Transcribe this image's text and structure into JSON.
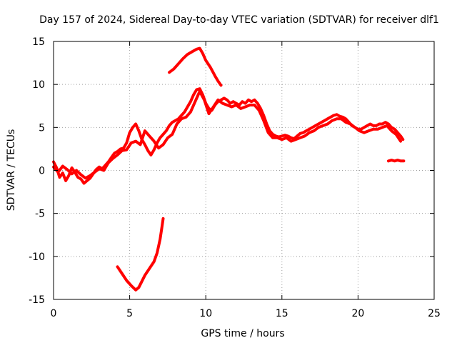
{
  "chart_data": {
    "type": "line",
    "title": "Day 157 of 2024, Sidereal Day-to-day VTEC variation (SDTVAR) for receiver dlf1",
    "xlabel": "GPS time / hours",
    "ylabel": "SDTVAR / TECUs",
    "xlim": [
      0,
      25
    ],
    "ylim": [
      -15,
      15
    ],
    "x_ticks": [
      0,
      5,
      10,
      15,
      20,
      25
    ],
    "y_ticks": [
      -15,
      -10,
      -5,
      0,
      5,
      10,
      15
    ],
    "x_tick_labels": [
      "0",
      "5",
      "10",
      "15",
      "20",
      "25"
    ],
    "y_tick_labels": [
      "-15",
      "-10",
      "-5",
      "0",
      "5",
      "10",
      "15"
    ],
    "grid": true,
    "line_color": "#ff0000",
    "grid_color": "#a0a0a0",
    "series": [
      {
        "name": "main-trace",
        "points": [
          [
            0.0,
            1.0
          ],
          [
            0.2,
            0.3
          ],
          [
            0.4,
            -0.8
          ],
          [
            0.6,
            -0.3
          ],
          [
            0.8,
            -1.2
          ],
          [
            1.0,
            -0.6
          ],
          [
            1.2,
            0.3
          ],
          [
            1.4,
            -0.2
          ],
          [
            1.6,
            -0.8
          ],
          [
            1.8,
            -1.0
          ],
          [
            2.0,
            -1.5
          ],
          [
            2.2,
            -1.2
          ],
          [
            2.4,
            -0.9
          ],
          [
            2.6,
            -0.4
          ],
          [
            2.8,
            0.1
          ],
          [
            3.0,
            0.4
          ],
          [
            3.2,
            0.2
          ],
          [
            3.4,
            0.6
          ],
          [
            3.6,
            1.0
          ],
          [
            3.8,
            1.5
          ],
          [
            4.0,
            2.0
          ],
          [
            4.2,
            2.2
          ],
          [
            4.4,
            2.5
          ],
          [
            4.6,
            2.6
          ],
          [
            4.8,
            3.2
          ],
          [
            5.0,
            4.4
          ],
          [
            5.2,
            5.0
          ],
          [
            5.4,
            5.4
          ],
          [
            5.6,
            4.6
          ],
          [
            5.8,
            3.6
          ],
          [
            6.0,
            3.0
          ],
          [
            6.2,
            2.3
          ],
          [
            6.4,
            1.8
          ],
          [
            6.6,
            2.4
          ],
          [
            6.8,
            3.2
          ],
          [
            7.0,
            3.8
          ],
          [
            7.2,
            4.2
          ],
          [
            7.4,
            4.6
          ],
          [
            7.6,
            5.2
          ],
          [
            7.8,
            5.6
          ],
          [
            8.0,
            5.8
          ],
          [
            8.2,
            6.0
          ],
          [
            8.4,
            6.4
          ],
          [
            8.6,
            6.8
          ],
          [
            8.8,
            7.4
          ],
          [
            9.0,
            8.0
          ],
          [
            9.2,
            8.8
          ],
          [
            9.4,
            9.4
          ],
          [
            9.6,
            9.5
          ],
          [
            9.8,
            8.8
          ],
          [
            10.0,
            7.8
          ],
          [
            10.2,
            7.2
          ],
          [
            10.4,
            7.0
          ],
          [
            10.6,
            7.6
          ],
          [
            10.8,
            8.0
          ],
          [
            11.0,
            8.2
          ],
          [
            11.2,
            8.4
          ],
          [
            11.4,
            8.2
          ],
          [
            11.6,
            7.8
          ],
          [
            11.8,
            8.0
          ],
          [
            12.0,
            7.8
          ],
          [
            12.2,
            7.6
          ],
          [
            12.4,
            8.0
          ],
          [
            12.6,
            7.8
          ],
          [
            12.8,
            8.2
          ],
          [
            13.0,
            8.0
          ],
          [
            13.2,
            8.2
          ],
          [
            13.4,
            7.8
          ],
          [
            13.6,
            7.2
          ],
          [
            13.8,
            6.4
          ],
          [
            14.0,
            5.4
          ],
          [
            14.2,
            4.6
          ],
          [
            14.4,
            4.2
          ],
          [
            14.6,
            4.0
          ],
          [
            14.8,
            3.9
          ],
          [
            15.0,
            4.0
          ],
          [
            15.2,
            4.1
          ],
          [
            15.4,
            4.0
          ],
          [
            15.6,
            3.8
          ],
          [
            15.8,
            3.7
          ],
          [
            16.0,
            4.0
          ],
          [
            16.2,
            4.3
          ],
          [
            16.4,
            4.4
          ],
          [
            16.6,
            4.6
          ],
          [
            16.8,
            4.8
          ],
          [
            17.0,
            5.0
          ],
          [
            17.2,
            5.2
          ],
          [
            17.4,
            5.4
          ],
          [
            17.6,
            5.6
          ],
          [
            17.8,
            5.8
          ],
          [
            18.0,
            6.0
          ],
          [
            18.2,
            6.2
          ],
          [
            18.4,
            6.4
          ],
          [
            18.6,
            6.5
          ],
          [
            18.8,
            6.3
          ],
          [
            19.0,
            6.2
          ],
          [
            19.2,
            6.0
          ],
          [
            19.4,
            5.6
          ],
          [
            19.6,
            5.2
          ],
          [
            19.8,
            5.0
          ],
          [
            20.0,
            4.8
          ],
          [
            20.2,
            4.8
          ],
          [
            20.4,
            5.0
          ],
          [
            20.6,
            5.2
          ],
          [
            20.8,
            5.4
          ],
          [
            21.0,
            5.2
          ],
          [
            21.2,
            5.2
          ],
          [
            21.4,
            5.4
          ],
          [
            21.6,
            5.4
          ],
          [
            21.8,
            5.6
          ],
          [
            22.0,
            5.4
          ],
          [
            22.2,
            5.0
          ],
          [
            22.4,
            4.8
          ],
          [
            22.6,
            4.4
          ],
          [
            22.8,
            4.0
          ],
          [
            22.95,
            3.6
          ]
        ]
      },
      {
        "name": "secondary-trace",
        "points": [
          [
            0.0,
            0.4
          ],
          [
            0.3,
            -0.2
          ],
          [
            0.6,
            0.5
          ],
          [
            0.9,
            0.1
          ],
          [
            1.2,
            -0.4
          ],
          [
            1.5,
            0.0
          ],
          [
            1.8,
            -0.5
          ],
          [
            2.1,
            -0.9
          ],
          [
            2.4,
            -0.6
          ],
          [
            2.7,
            -0.2
          ],
          [
            3.0,
            0.2
          ],
          [
            3.3,
            0.0
          ],
          [
            3.6,
            0.9
          ],
          [
            3.9,
            1.4
          ],
          [
            4.2,
            1.8
          ],
          [
            4.5,
            2.3
          ],
          [
            4.8,
            2.4
          ],
          [
            5.1,
            3.2
          ],
          [
            5.4,
            3.4
          ],
          [
            5.7,
            3.0
          ],
          [
            6.0,
            4.6
          ],
          [
            6.3,
            4.0
          ],
          [
            6.6,
            3.4
          ],
          [
            6.9,
            2.6
          ],
          [
            7.2,
            3.0
          ],
          [
            7.5,
            3.8
          ],
          [
            7.8,
            4.2
          ],
          [
            8.1,
            5.4
          ],
          [
            8.4,
            6.0
          ],
          [
            8.7,
            6.2
          ],
          [
            9.0,
            6.8
          ],
          [
            9.3,
            8.0
          ],
          [
            9.6,
            9.2
          ],
          [
            9.9,
            8.2
          ],
          [
            10.2,
            6.6
          ],
          [
            10.5,
            7.4
          ],
          [
            10.8,
            8.2
          ],
          [
            11.1,
            7.8
          ],
          [
            11.4,
            7.6
          ],
          [
            11.7,
            7.4
          ],
          [
            12.0,
            7.6
          ],
          [
            12.3,
            7.2
          ],
          [
            12.6,
            7.4
          ],
          [
            12.9,
            7.6
          ],
          [
            13.2,
            7.6
          ],
          [
            13.5,
            7.0
          ],
          [
            13.8,
            5.8
          ],
          [
            14.1,
            4.4
          ],
          [
            14.4,
            3.8
          ],
          [
            14.7,
            3.8
          ],
          [
            15.0,
            3.6
          ],
          [
            15.3,
            3.8
          ],
          [
            15.6,
            3.4
          ],
          [
            15.9,
            3.6
          ],
          [
            16.2,
            3.8
          ],
          [
            16.5,
            4.0
          ],
          [
            16.8,
            4.4
          ],
          [
            17.1,
            4.6
          ],
          [
            17.4,
            5.0
          ],
          [
            17.7,
            5.2
          ],
          [
            18.0,
            5.4
          ],
          [
            18.3,
            5.8
          ],
          [
            18.6,
            6.0
          ],
          [
            18.9,
            6.0
          ],
          [
            19.2,
            5.6
          ],
          [
            19.5,
            5.4
          ],
          [
            19.8,
            5.0
          ],
          [
            20.1,
            4.6
          ],
          [
            20.4,
            4.4
          ],
          [
            20.7,
            4.6
          ],
          [
            21.0,
            4.8
          ],
          [
            21.3,
            4.8
          ],
          [
            21.6,
            5.0
          ],
          [
            21.9,
            5.2
          ],
          [
            22.2,
            4.6
          ],
          [
            22.5,
            4.2
          ],
          [
            22.8,
            3.4
          ]
        ]
      },
      {
        "name": "upper-segment",
        "points": [
          [
            7.6,
            11.4
          ],
          [
            7.9,
            11.8
          ],
          [
            8.2,
            12.4
          ],
          [
            8.5,
            13.0
          ],
          [
            8.8,
            13.5
          ],
          [
            9.1,
            13.8
          ],
          [
            9.4,
            14.1
          ],
          [
            9.6,
            14.2
          ],
          [
            9.8,
            13.6
          ],
          [
            10.0,
            12.8
          ],
          [
            10.3,
            12.0
          ],
          [
            10.6,
            11.0
          ],
          [
            10.8,
            10.4
          ],
          [
            11.0,
            9.9
          ]
        ]
      },
      {
        "name": "lower-segment",
        "points": [
          [
            4.2,
            -11.2
          ],
          [
            4.5,
            -12.0
          ],
          [
            4.8,
            -12.8
          ],
          [
            5.1,
            -13.4
          ],
          [
            5.4,
            -13.9
          ],
          [
            5.6,
            -13.6
          ],
          [
            5.8,
            -12.9
          ],
          [
            6.0,
            -12.2
          ],
          [
            6.3,
            -11.4
          ],
          [
            6.6,
            -10.6
          ],
          [
            6.8,
            -9.6
          ],
          [
            7.0,
            -8.0
          ],
          [
            7.1,
            -6.8
          ],
          [
            7.2,
            -5.6
          ]
        ]
      },
      {
        "name": "end-segment",
        "points": [
          [
            22.0,
            1.1
          ],
          [
            22.2,
            1.2
          ],
          [
            22.4,
            1.1
          ],
          [
            22.6,
            1.2
          ],
          [
            22.8,
            1.1
          ],
          [
            23.0,
            1.1
          ]
        ]
      }
    ]
  }
}
